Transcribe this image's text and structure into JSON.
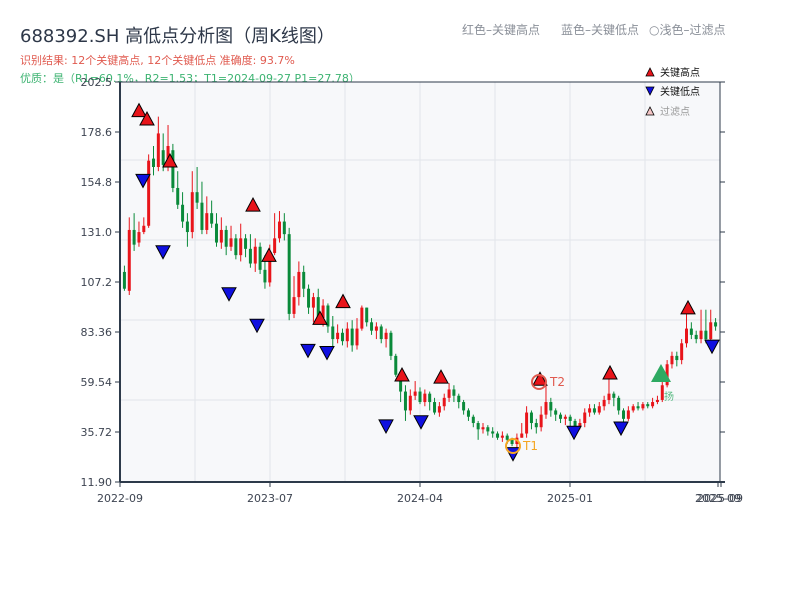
{
  "header": {
    "title": "688392.SH 高低点分析图（周K线图）",
    "result_line": "识别结果: 12个关键高点, 12个关键低点   准确度: 93.7%",
    "quality_line": "优质：是（R1=60.1%，R2=1.53；T1=2024-09-27 P1=27.78）"
  },
  "top_legend": {
    "red": "红色–关键高点",
    "blue": "蓝色–关键低点",
    "light": "○浅色–过滤点"
  },
  "legend": {
    "items": [
      {
        "label": "关键高点",
        "marker": "triangle-up",
        "color": "#e8141a"
      },
      {
        "label": "关键低点",
        "marker": "triangle-down",
        "color": "#1010e0"
      },
      {
        "label": "过滤点",
        "marker": "triangle-up-hollow",
        "color": "#f4c6c6"
      }
    ]
  },
  "colors": {
    "up": "#e8141a",
    "down": "#0a8a3a",
    "high_marker": "#e8141a",
    "low_marker": "#1010e0",
    "t1": "#f5a623",
    "t2": "#e05a4f",
    "signal": "#2eaa62",
    "plot_bg": "#f7f8fa",
    "grid": "#e2e5ea",
    "axis": "#2d3a4a"
  },
  "annotations": {
    "t1_label": "T1",
    "t2_label": "T2",
    "signal_label": "扬"
  },
  "chart_data": {
    "type": "candlestick",
    "title": "688392.SH 高低点分析图（周K线图）",
    "xlabel": "",
    "ylabel": "",
    "ylim": [
      11.9,
      202.5
    ],
    "y_ticks": [
      "202.5",
      "178.6",
      "154.8",
      "131.0",
      "107.2",
      "83.36",
      "59.54",
      "35.72",
      "11.90"
    ],
    "x_ticks": [
      "2022-09",
      "2023-07",
      "2024-04",
      "2025-01",
      "2025-09"
    ],
    "x_ticks_overlap_label": "2025-09",
    "grid": true,
    "legend_position": "upper right",
    "key_highs": [
      {
        "date": "2022-10",
        "price": 186
      },
      {
        "date": "2022-11",
        "price": 182
      },
      {
        "date": "2022-12",
        "price": 162
      },
      {
        "date": "2023-06",
        "price": 141
      },
      {
        "date": "2023-07",
        "price": 117
      },
      {
        "date": "2023-10",
        "price": 87
      },
      {
        "date": "2023-11",
        "price": 95
      },
      {
        "date": "2024-02",
        "price": 60
      },
      {
        "date": "2024-05",
        "price": 59
      },
      {
        "date": "2024-10",
        "price": 58
      },
      {
        "date": "2025-03",
        "price": 61
      },
      {
        "date": "2025-07",
        "price": 92
      }
    ],
    "key_lows": [
      {
        "date": "2022-11",
        "price": 158
      },
      {
        "date": "2022-12",
        "price": 124
      },
      {
        "date": "2023-05",
        "price": 104
      },
      {
        "date": "2023-07",
        "price": 89
      },
      {
        "date": "2023-10",
        "price": 77
      },
      {
        "date": "2023-10",
        "price": 76
      },
      {
        "date": "2024-01",
        "price": 41
      },
      {
        "date": "2024-04",
        "price": 43
      },
      {
        "date": "2024-09",
        "price": 27.78
      },
      {
        "date": "2025-01",
        "price": 38
      },
      {
        "date": "2025-04",
        "price": 40
      },
      {
        "date": "2025-09",
        "price": 79
      }
    ],
    "T1": {
      "date": "2024-09-27",
      "price": 27.78
    },
    "T2": {
      "date": "2024-10",
      "price": 58
    },
    "candles": [
      [
        112,
        104,
        115,
        103
      ],
      [
        103,
        132,
        138,
        101
      ],
      [
        132,
        125,
        140,
        122
      ],
      [
        126,
        131,
        136,
        124
      ],
      [
        131,
        134,
        138,
        130
      ],
      [
        134,
        165,
        168,
        133
      ],
      [
        166,
        162,
        172,
        158
      ],
      [
        162,
        178,
        186,
        160
      ],
      [
        170,
        163,
        178,
        160
      ],
      [
        163,
        172,
        182,
        160
      ],
      [
        170,
        152,
        173,
        150
      ],
      [
        152,
        144,
        160,
        142
      ],
      [
        144,
        136,
        150,
        133
      ],
      [
        136,
        131,
        140,
        124
      ],
      [
        131,
        150,
        160,
        128
      ],
      [
        150,
        145,
        162,
        142
      ],
      [
        145,
        132,
        155,
        130
      ],
      [
        132,
        140,
        148,
        130
      ],
      [
        140,
        135,
        146,
        133
      ],
      [
        135,
        126,
        140,
        124
      ],
      [
        126,
        132,
        138,
        123
      ],
      [
        132,
        124,
        134,
        120
      ],
      [
        124,
        128,
        134,
        122
      ],
      [
        128,
        120,
        130,
        118
      ],
      [
        120,
        128,
        135,
        117
      ],
      [
        128,
        123,
        130,
        119
      ],
      [
        123,
        116,
        130,
        114
      ],
      [
        116,
        124,
        128,
        112
      ],
      [
        124,
        113,
        126,
        111
      ],
      [
        113,
        107,
        120,
        104
      ],
      [
        107,
        121,
        125,
        105
      ],
      [
        121,
        128,
        140,
        120
      ],
      [
        128,
        136,
        141,
        126
      ],
      [
        136,
        130,
        140,
        127
      ],
      [
        130,
        92,
        133,
        89
      ],
      [
        92,
        100,
        110,
        90
      ],
      [
        100,
        112,
        117,
        96
      ],
      [
        112,
        104,
        115,
        100
      ],
      [
        104,
        95,
        106,
        92
      ],
      [
        95,
        100,
        102,
        88
      ],
      [
        100,
        90,
        104,
        88
      ],
      [
        90,
        96,
        99,
        86
      ],
      [
        96,
        86,
        97,
        83
      ],
      [
        86,
        80,
        91,
        76
      ],
      [
        80,
        83,
        87,
        78
      ],
      [
        83,
        79,
        85,
        77
      ],
      [
        79,
        85,
        88,
        76
      ],
      [
        85,
        77,
        89,
        74
      ],
      [
        77,
        85,
        90,
        75
      ],
      [
        85,
        95,
        96,
        84
      ],
      [
        95,
        88,
        95,
        86
      ],
      [
        88,
        84,
        90,
        82
      ],
      [
        84,
        86,
        88,
        80
      ],
      [
        86,
        80,
        87,
        78
      ],
      [
        80,
        83,
        85,
        76
      ],
      [
        83,
        72,
        84,
        70
      ],
      [
        72,
        63,
        73,
        62
      ],
      [
        63,
        55,
        65,
        50
      ],
      [
        55,
        46,
        58,
        41
      ],
      [
        46,
        53,
        56,
        44
      ],
      [
        53,
        55,
        60,
        51
      ],
      [
        55,
        50,
        57,
        49
      ],
      [
        50,
        54,
        56,
        48
      ],
      [
        54,
        50,
        55,
        46
      ],
      [
        50,
        45,
        52,
        44
      ],
      [
        45,
        48,
        50,
        43
      ],
      [
        48,
        52,
        54,
        46
      ],
      [
        52,
        56,
        59,
        50
      ],
      [
        56,
        53,
        58,
        50
      ],
      [
        53,
        50,
        54,
        47
      ],
      [
        50,
        46,
        51,
        44
      ],
      [
        46,
        43,
        47,
        41
      ],
      [
        43,
        40,
        44,
        38
      ],
      [
        40,
        37,
        41,
        32
      ],
      [
        37,
        38,
        40,
        35
      ],
      [
        38,
        36,
        39,
        34
      ],
      [
        36,
        35,
        38,
        33
      ],
      [
        35,
        33,
        36,
        32
      ],
      [
        33,
        34,
        36,
        31
      ],
      [
        34,
        32,
        35,
        30
      ],
      [
        32,
        30,
        33,
        29
      ],
      [
        30,
        33,
        35,
        28
      ],
      [
        33,
        35,
        40,
        33
      ],
      [
        35,
        45,
        48,
        33
      ],
      [
        45,
        40,
        46,
        37
      ],
      [
        40,
        38,
        42,
        35
      ],
      [
        38,
        44,
        48,
        36
      ],
      [
        44,
        50,
        58,
        42
      ],
      [
        50,
        46,
        52,
        43
      ],
      [
        46,
        44,
        47,
        41
      ],
      [
        44,
        42,
        45,
        40
      ],
      [
        42,
        43,
        44,
        39
      ],
      [
        43,
        41,
        44,
        38
      ],
      [
        41,
        38,
        42,
        36
      ],
      [
        38,
        40,
        42,
        37
      ],
      [
        40,
        45,
        47,
        38
      ],
      [
        45,
        47,
        49,
        43
      ],
      [
        47,
        45,
        49,
        44
      ],
      [
        45,
        48,
        50,
        44
      ],
      [
        48,
        51,
        53,
        46
      ],
      [
        51,
        54,
        61,
        49
      ],
      [
        54,
        52,
        55,
        48
      ],
      [
        52,
        46,
        53,
        44
      ],
      [
        46,
        42,
        47,
        40
      ],
      [
        42,
        46,
        48,
        41
      ],
      [
        46,
        48,
        49,
        45
      ],
      [
        48,
        47,
        50,
        46
      ],
      [
        47,
        49,
        50,
        46
      ],
      [
        49,
        48,
        50,
        47
      ],
      [
        48,
        50,
        52,
        47
      ],
      [
        50,
        51,
        53,
        49
      ],
      [
        51,
        58,
        65,
        50
      ],
      [
        58,
        68,
        70,
        57
      ],
      [
        68,
        72,
        74,
        66
      ],
      [
        72,
        70,
        74,
        67
      ],
      [
        70,
        78,
        80,
        68
      ],
      [
        78,
        85,
        92,
        76
      ],
      [
        85,
        82,
        88,
        80
      ],
      [
        82,
        80,
        84,
        78
      ],
      [
        80,
        84,
        94,
        78
      ],
      [
        84,
        80,
        94,
        78
      ],
      [
        80,
        88,
        94,
        79
      ],
      [
        88,
        86,
        90,
        84
      ]
    ]
  }
}
